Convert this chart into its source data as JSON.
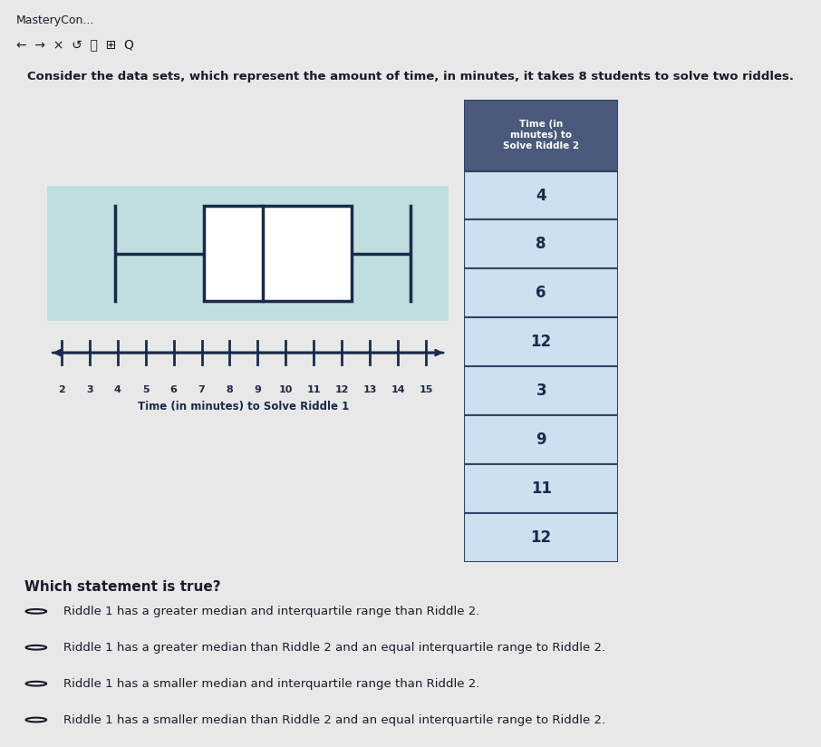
{
  "browser_bar_text": "MasteryCon...",
  "nav_icons": "← → × ↺ ⓘ ⊞ Q",
  "title_main": "Consider the data sets, which represent the amount of time, in minutes, it takes 8 students to solve two riddles.",
  "boxplot_riddle1": {
    "min": 4,
    "q1": 7,
    "median": 9,
    "q3": 12,
    "max": 14,
    "xlabel": "Time (in minutes) to Solve Riddle 1",
    "xmin": 2,
    "xmax": 15
  },
  "table_riddle2": {
    "header": "Time (in\nminutes) to\nSolve Riddle 2",
    "values": [
      4,
      8,
      6,
      12,
      3,
      9,
      11,
      12
    ]
  },
  "question": "Which statement is true?",
  "options": [
    "Riddle 1 has a greater median and interquartile range than Riddle 2.",
    "Riddle 1 has a greater median than Riddle 2 and an equal interquartile range to Riddle 2.",
    "Riddle 1 has a smaller median and interquartile range than Riddle 2.",
    "Riddle 1 has a smaller median than Riddle 2 and an equal interquartile range to Riddle 2."
  ],
  "bg_color_top": "#e8e8e8",
  "bg_color_page": "#b8d8dc",
  "panel_bg": "#c0dde0",
  "table_header_color": "#4a5a7a",
  "table_row_color": "#cce0ee",
  "table_border_color": "#334466",
  "boxplot_color": "#1a2a4a",
  "text_color": "#1a2a4a",
  "text_color_dark": "#1a1a2a",
  "white": "#ffffff"
}
